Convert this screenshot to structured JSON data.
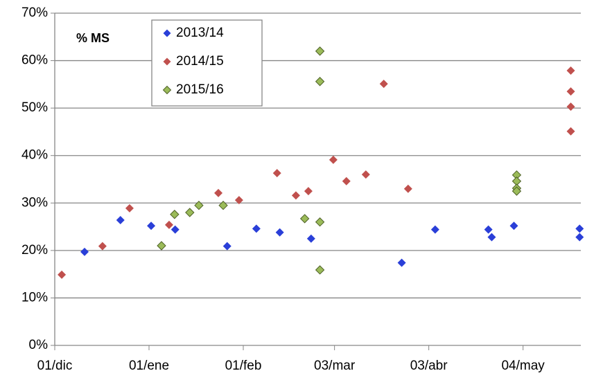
{
  "chart_data": {
    "type": "scatter",
    "annotation": "% MS",
    "xlim": [
      0,
      173
    ],
    "ylim": [
      0,
      70
    ],
    "xticks": [
      {
        "value": 0,
        "label": "01/dic"
      },
      {
        "value": 31,
        "label": "01/ene"
      },
      {
        "value": 62,
        "label": "01/feb"
      },
      {
        "value": 92,
        "label": "03/mar"
      },
      {
        "value": 123,
        "label": "03/abr"
      },
      {
        "value": 154,
        "label": "04/may"
      }
    ],
    "yticks": [
      {
        "value": 0,
        "label": "0%"
      },
      {
        "value": 10,
        "label": "10%"
      },
      {
        "value": 20,
        "label": "20%"
      },
      {
        "value": 30,
        "label": "30%"
      },
      {
        "value": 40,
        "label": "40%"
      },
      {
        "value": 50,
        "label": "50%"
      },
      {
        "value": 60,
        "label": "60%"
      },
      {
        "value": 70,
        "label": "70%"
      }
    ],
    "grid": true,
    "legend": "top-left",
    "series": [
      {
        "name": "2013/14",
        "color": "#2a3fd8",
        "x": [
          9.8,
          21.6,
          31.7,
          39.6,
          56.7,
          66.3,
          74.0,
          84.3,
          114.1,
          125.1,
          142.6,
          143.7,
          151.0,
          172.6,
          172.6
        ],
        "values": [
          19.7,
          26.4,
          25.2,
          24.4,
          20.9,
          24.6,
          23.8,
          22.5,
          17.4,
          24.4,
          24.4,
          22.8,
          25.2,
          24.6,
          22.8
        ]
      },
      {
        "name": "2014/15",
        "color": "#c0504d",
        "x": [
          2.3,
          15.7,
          24.6,
          37.6,
          53.8,
          60.6,
          73.1,
          79.3,
          83.4,
          91.6,
          95.9,
          102.3,
          108.2,
          116.2,
          169.7,
          169.7,
          169.7,
          169.7
        ],
        "values": [
          14.9,
          20.9,
          28.9,
          25.4,
          32.1,
          30.6,
          36.3,
          31.6,
          32.5,
          39.1,
          34.6,
          36.0,
          55.1,
          33.0,
          45.1,
          50.3,
          53.5,
          57.9
        ]
      },
      {
        "name": "2015/16",
        "color": "#9bbb59",
        "x": [
          35.1,
          39.4,
          44.4,
          47.4,
          55.4,
          82.2,
          87.2,
          87.2,
          87.2,
          87.2,
          151.9,
          151.9,
          151.9,
          151.9
        ],
        "values": [
          21.0,
          27.6,
          28.0,
          29.5,
          29.5,
          26.7,
          62.0,
          55.6,
          26.0,
          15.9,
          35.9,
          34.6,
          33.1,
          32.5
        ]
      }
    ]
  }
}
